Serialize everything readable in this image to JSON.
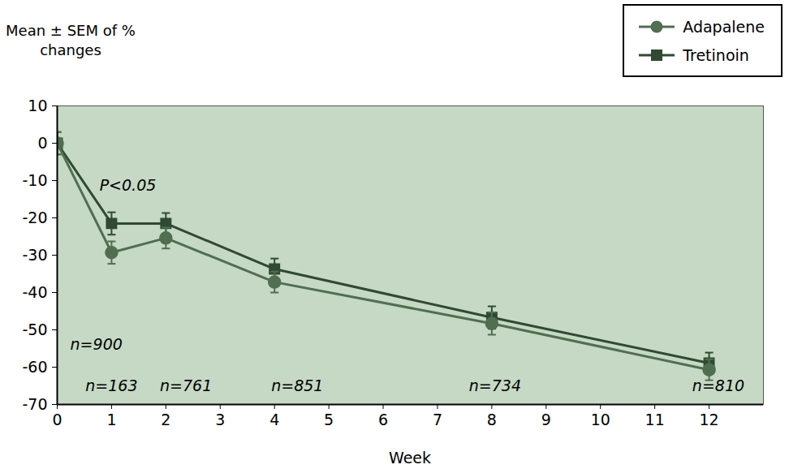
{
  "chart_data": {
    "type": "line",
    "x_label": "Week",
    "y_label": "Mean ± SEM of % changes",
    "x": [
      0,
      1,
      2,
      4,
      8,
      12
    ],
    "series": [
      {
        "name": "Adapalene",
        "color": "#4f6f50",
        "marker": "circle",
        "values": [
          0,
          -29.3,
          -25.4,
          -37.2,
          -48.3,
          -60.7
        ],
        "errors": [
          3,
          3,
          2.8,
          2.8,
          3,
          2.8
        ]
      },
      {
        "name": "Tretinoin",
        "color": "#2f4a31",
        "marker": "square",
        "values": [
          0,
          -21.5,
          -21.5,
          -33.7,
          -46.7,
          -58.9
        ],
        "errors": [
          3,
          3,
          2.8,
          2.8,
          3,
          2.8
        ]
      }
    ],
    "xlim": [
      0,
      13
    ],
    "xticks": [
      0,
      1,
      2,
      3,
      4,
      5,
      6,
      7,
      8,
      9,
      10,
      11,
      12
    ],
    "ylim": [
      -70,
      10
    ],
    "yticks": [
      10,
      0,
      -10,
      -20,
      -30,
      -40,
      -50,
      -60,
      -70
    ],
    "grid": false,
    "legend": "top-right",
    "annotations": [
      {
        "text": "P<0.05",
        "x": 1.3,
        "y": -11.3
      },
      {
        "text": "n=900",
        "x": 0.72,
        "y": -54
      },
      {
        "text": "n=163",
        "x": 1,
        "y": -65
      },
      {
        "text": "n=761",
        "x": 2.37,
        "y": -65
      },
      {
        "text": "n=851",
        "x": 4.42,
        "y": -65
      },
      {
        "text": "n=734",
        "x": 8.06,
        "y": -65
      },
      {
        "text": "n=810",
        "x": 12.17,
        "y": -65
      }
    ]
  }
}
